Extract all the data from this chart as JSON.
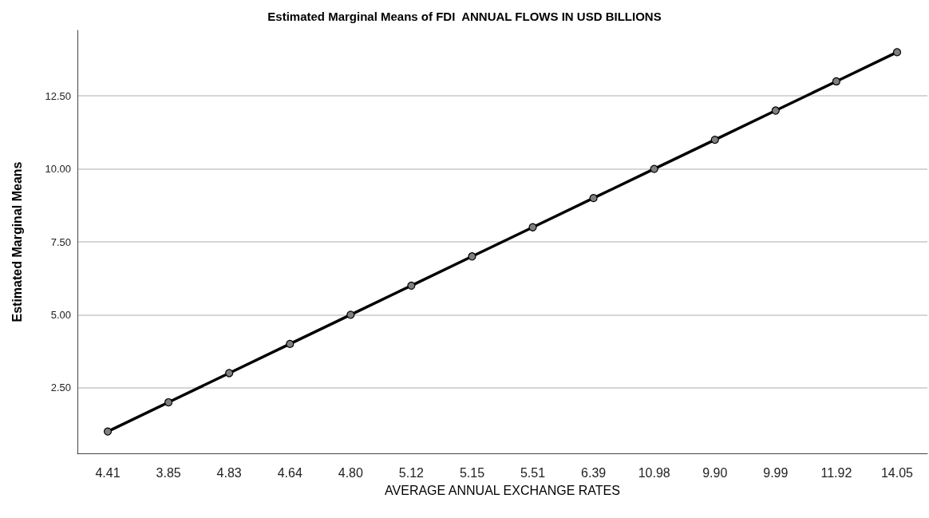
{
  "chart_data": {
    "type": "line",
    "title": "Estimated Marginal Means of FDI  ANNUAL FLOWS IN USD BILLIONS",
    "xlabel": "AVERAGE ANNUAL EXCHANGE RATES",
    "ylabel": "Estimated Marginal Means",
    "categories": [
      "4.41",
      "3.85",
      "4.83",
      "4.64",
      "4.80",
      "5.12",
      "5.15",
      "5.51",
      "6.39",
      "10.98",
      "9.90",
      "9.99",
      "11.92",
      "14.05"
    ],
    "series": [
      {
        "color": "#000000",
        "values": [
          1,
          2,
          3,
          4,
          5,
          6,
          7,
          8,
          9,
          10,
          11,
          12,
          13,
          14
        ]
      }
    ],
    "ylim": [
      0.25,
      14.75
    ],
    "yticks": [
      {
        "value": 2.5,
        "label": "2.50"
      },
      {
        "value": 5,
        "label": "5.00"
      },
      {
        "value": 7.5,
        "label": "7.50"
      },
      {
        "value": 10,
        "label": "10.00"
      },
      {
        "value": 12.5,
        "label": "12.50"
      }
    ],
    "grid": "y",
    "marker": "circle",
    "line_style": "solid"
  }
}
